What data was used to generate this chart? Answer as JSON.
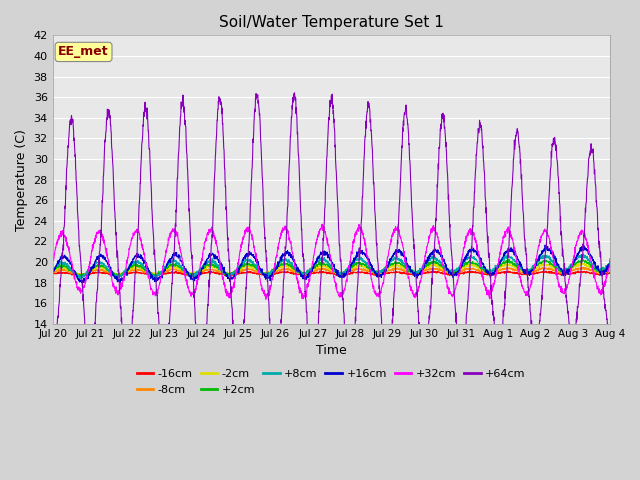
{
  "title": "Soil/Water Temperature Set 1",
  "xlabel": "Time",
  "ylabel": "Temperature (C)",
  "ylim": [
    14,
    42
  ],
  "yticks": [
    14,
    16,
    18,
    20,
    22,
    24,
    26,
    28,
    30,
    32,
    34,
    36,
    38,
    40,
    42
  ],
  "n_days": 15,
  "x_tick_labels": [
    "Jul 20",
    "Jul 21",
    "Jul 22",
    "Jul 23",
    "Jul 24",
    "Jul 25",
    "Jul 26",
    "Jul 27",
    "Jul 28",
    "Jul 29",
    "Jul 30",
    "Jul 31",
    "Aug 1",
    "Aug 2",
    "Aug 3",
    "Aug 4"
  ],
  "series": [
    {
      "label": "-16cm",
      "color": "#ff0000"
    },
    {
      "label": "-8cm",
      "color": "#ff8800"
    },
    {
      "label": "-2cm",
      "color": "#dddd00"
    },
    {
      "label": "+2cm",
      "color": "#00bb00"
    },
    {
      "label": "+8cm",
      "color": "#00aaaa"
    },
    {
      "label": "+16cm",
      "color": "#0000cc"
    },
    {
      "label": "+32cm",
      "color": "#ff00ff"
    },
    {
      "label": "+64cm",
      "color": "#8800bb"
    }
  ],
  "fig_facecolor": "#d3d3d3",
  "ax_facecolor": "#e8e8e8",
  "grid_color": "#ffffff",
  "watermark": "EE_met",
  "watermark_fg": "#8b0000",
  "watermark_bg": "#ffff99"
}
